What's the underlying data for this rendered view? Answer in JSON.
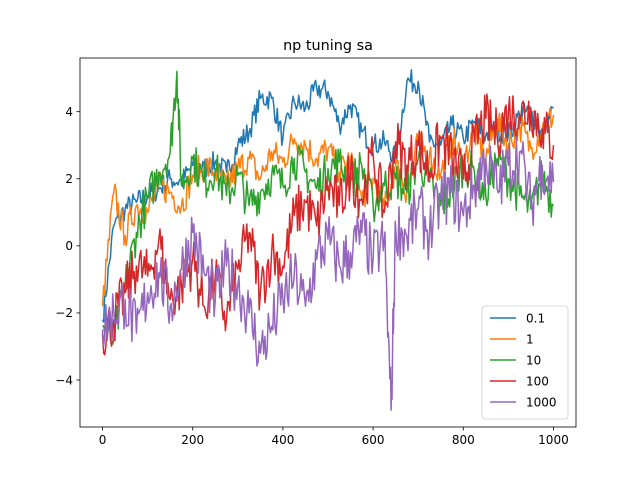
{
  "chart_data": {
    "type": "line",
    "title": "np tuning sa",
    "xlabel": "",
    "ylabel": "",
    "xlim": [
      -50,
      1050
    ],
    "ylim": [
      -5.4,
      5.6
    ],
    "xticks": [
      0,
      200,
      400,
      600,
      800,
      1000
    ],
    "xtick_labels": [
      "0",
      "200",
      "400",
      "600",
      "800",
      "1000"
    ],
    "yticks": [
      -4,
      -2,
      0,
      2,
      4
    ],
    "ytick_labels": [
      "−4",
      "−2",
      "0",
      "2",
      "4"
    ],
    "grid": false,
    "legend_position": "lower-right",
    "series": [
      {
        "name": "0.1",
        "color": "#1f77b4",
        "x": [
          0,
          25,
          50,
          75,
          100,
          125,
          150,
          175,
          200,
          225,
          250,
          275,
          300,
          325,
          350,
          375,
          400,
          425,
          450,
          475,
          500,
          525,
          550,
          575,
          600,
          625,
          650,
          675,
          700,
          725,
          750,
          775,
          800,
          825,
          850,
          875,
          900,
          925,
          950,
          975,
          1000
        ],
        "y": [
          -2.2,
          0.6,
          1.1,
          1.3,
          1.5,
          1.7,
          2.0,
          1.9,
          2.4,
          2.3,
          2.5,
          2.2,
          3.0,
          3.4,
          4.4,
          4.4,
          3.2,
          4.3,
          4.1,
          4.7,
          4.6,
          3.6,
          4.2,
          3.4,
          3.0,
          3.1,
          2.6,
          4.9,
          4.9,
          3.1,
          3.0,
          3.6,
          3.2,
          3.7,
          3.3,
          3.5,
          3.3,
          3.9,
          4.0,
          3.3,
          4.1
        ]
      },
      {
        "name": "1",
        "color": "#ff7f0e",
        "x": [
          0,
          25,
          50,
          75,
          100,
          125,
          150,
          175,
          200,
          225,
          250,
          275,
          300,
          325,
          350,
          375,
          400,
          425,
          450,
          475,
          500,
          525,
          550,
          575,
          600,
          625,
          650,
          675,
          700,
          725,
          750,
          775,
          800,
          825,
          850,
          875,
          900,
          925,
          950,
          975,
          1000
        ],
        "y": [
          -1.8,
          1.6,
          0.3,
          1.2,
          1.0,
          1.8,
          1.6,
          1.2,
          2.1,
          2.4,
          2.2,
          1.8,
          2.3,
          2.6,
          2.0,
          2.8,
          2.5,
          3.2,
          3.0,
          2.6,
          2.9,
          2.2,
          2.6,
          1.4,
          2.0,
          1.1,
          2.4,
          1.6,
          3.1,
          2.7,
          2.1,
          3.2,
          2.5,
          3.4,
          2.6,
          3.8,
          3.0,
          3.6,
          2.9,
          3.5,
          3.9
        ]
      },
      {
        "name": "10",
        "color": "#2ca02c",
        "x": [
          0,
          25,
          50,
          75,
          100,
          125,
          150,
          165,
          175,
          200,
          225,
          250,
          275,
          300,
          325,
          350,
          375,
          400,
          425,
          450,
          475,
          500,
          525,
          550,
          575,
          600,
          625,
          650,
          675,
          700,
          725,
          750,
          775,
          800,
          825,
          850,
          875,
          900,
          925,
          950,
          975,
          1000
        ],
        "y": [
          -2.4,
          -2.8,
          -1.2,
          0.4,
          1.4,
          2.2,
          2.8,
          5.2,
          1.8,
          2.6,
          1.9,
          2.3,
          1.5,
          2.1,
          1.2,
          1.6,
          2.1,
          1.8,
          2.6,
          2.2,
          1.7,
          2.3,
          2.5,
          1.9,
          2.4,
          1.2,
          1.8,
          2.0,
          1.6,
          2.6,
          1.9,
          1.2,
          1.7,
          2.4,
          2.2,
          1.5,
          2.6,
          2.0,
          1.5,
          1.1,
          2.1,
          1.2
        ]
      },
      {
        "name": "100",
        "color": "#d62728",
        "x": [
          0,
          25,
          50,
          75,
          100,
          125,
          150,
          175,
          200,
          225,
          250,
          275,
          300,
          325,
          350,
          375,
          400,
          425,
          450,
          475,
          500,
          525,
          550,
          575,
          600,
          625,
          650,
          675,
          700,
          725,
          750,
          775,
          800,
          825,
          850,
          875,
          900,
          925,
          950,
          975,
          1000
        ],
        "y": [
          -2.6,
          -2.2,
          -1.4,
          -0.6,
          -0.9,
          0.2,
          -1.6,
          -1.2,
          -0.4,
          -1.8,
          -0.9,
          -2.2,
          -0.7,
          0.4,
          -1.4,
          -0.2,
          -0.6,
          0.9,
          1.3,
          0.6,
          1.8,
          1.2,
          2.2,
          1.4,
          2.7,
          1.0,
          3.1,
          2.4,
          3.0,
          2.2,
          3.2,
          2.6,
          2.0,
          3.1,
          3.8,
          3.3,
          4.0,
          3.9,
          4.1,
          3.5,
          3.0
        ]
      },
      {
        "name": "1000",
        "color": "#9467bd",
        "x": [
          0,
          25,
          50,
          75,
          100,
          125,
          150,
          175,
          200,
          225,
          250,
          275,
          300,
          325,
          350,
          375,
          400,
          425,
          450,
          475,
          500,
          525,
          550,
          575,
          600,
          625,
          640,
          650,
          675,
          700,
          725,
          750,
          775,
          800,
          825,
          850,
          875,
          900,
          925,
          950,
          975,
          1000
        ],
        "y": [
          -2.5,
          -2.0,
          -1.6,
          -2.6,
          -1.4,
          -0.8,
          -1.8,
          -0.7,
          0.4,
          -0.8,
          -1.6,
          -0.6,
          -1.2,
          -2.0,
          -3.2,
          -2.4,
          -1.6,
          -0.9,
          -1.8,
          -0.4,
          0.2,
          -0.6,
          -0.2,
          0.4,
          -0.4,
          0.2,
          -4.9,
          0.6,
          0.3,
          1.1,
          0.4,
          1.4,
          1.6,
          0.9,
          1.8,
          2.6,
          1.7,
          2.4,
          2.8,
          1.2,
          2.4,
          1.9
        ]
      }
    ]
  }
}
